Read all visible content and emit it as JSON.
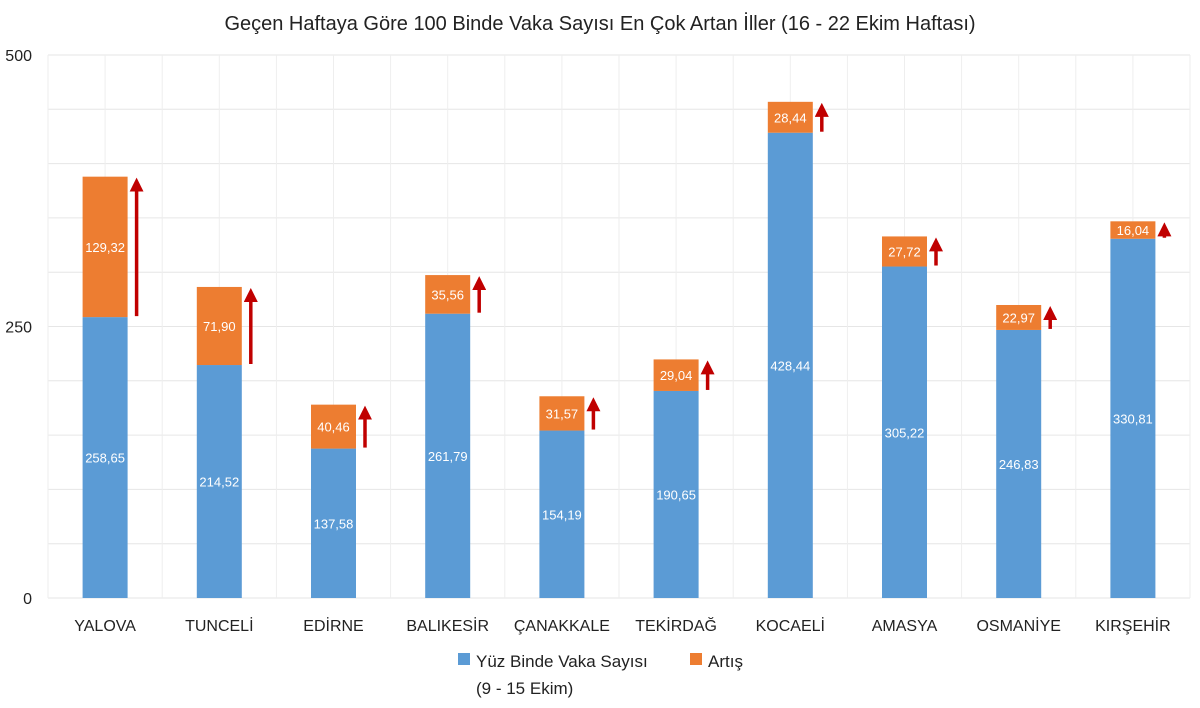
{
  "chart_data": {
    "type": "bar",
    "stacked": true,
    "title": "Geçen Haftaya Göre 100 Binde Vaka Sayısı En Çok Artan İller (16 - 22 Ekim Haftası)",
    "categories": [
      "YALOVA",
      "TUNCELİ",
      "EDİRNE",
      "BALIKESİR",
      "ÇANAKKALE",
      "TEKİRDAĞ",
      "KOCAELİ",
      "AMASYA",
      "OSMANİYE",
      "KIRŞEHİR"
    ],
    "series": [
      {
        "name": "Yüz Binde Vaka Sayısı",
        "name_line2": "(9 - 15 Ekim)",
        "color": "#5B9BD5",
        "values": [
          258.65,
          214.52,
          137.58,
          261.79,
          154.19,
          190.65,
          428.44,
          305.22,
          246.83,
          330.81
        ],
        "labels": [
          "258,65",
          "214,52",
          "137,58",
          "261,79",
          "154,19",
          "190,65",
          "428,44",
          "305,22",
          "246,83",
          "330,81"
        ]
      },
      {
        "name": "Artış",
        "color": "#ED7D31",
        "values": [
          129.32,
          71.9,
          40.46,
          35.56,
          31.57,
          29.04,
          28.44,
          27.72,
          22.97,
          16.04
        ],
        "labels": [
          "129,32",
          "71,90",
          "40,46",
          "35,56",
          "31,57",
          "29,04",
          "28,44",
          "27,72",
          "22,97",
          "16,04"
        ]
      }
    ],
    "ylim": [
      0,
      500
    ],
    "yticks": [
      "0",
      "250",
      "500"
    ],
    "grid": true,
    "legend": "bottom",
    "arrow_color": "#C00000"
  }
}
